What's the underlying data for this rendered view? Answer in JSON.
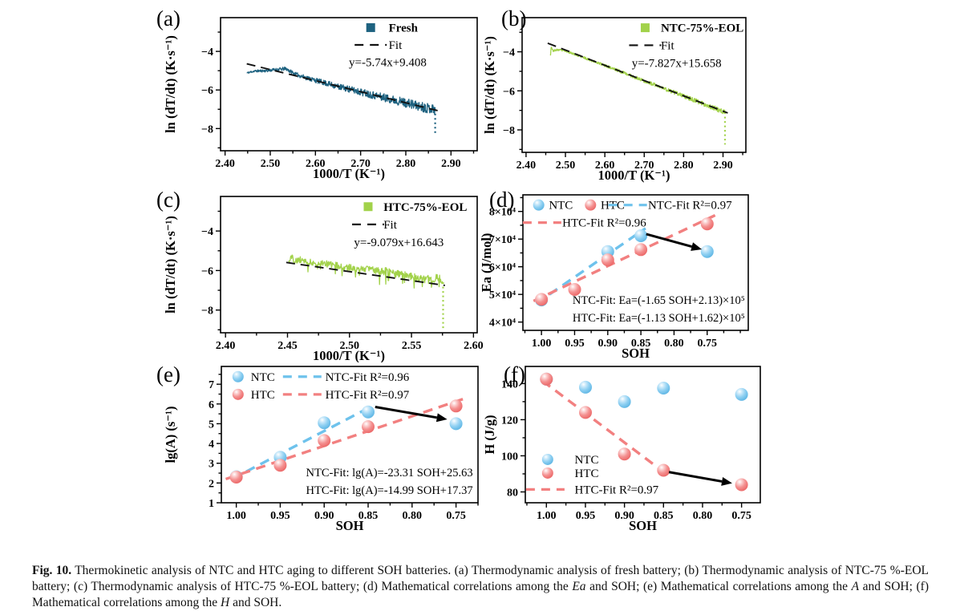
{
  "colors": {
    "teal": "#1e6280",
    "green": "#a2d24a",
    "ntc_blue": "#6ec2ec",
    "htc_red": "#f28080",
    "fit_black": "#111111",
    "arrow_black": "#000000"
  },
  "caption": {
    "fig_label": "Fig. 10.",
    "part1": " Thermokinetic analysis of NTC and HTC aging to different SOH batteries. (a) Thermodynamic analysis of fresh battery; (b) Thermodynamic analysis of NTC-75 %-EOL battery; (c) Thermodynamic analysis of HTC-75 %-EOL battery; (d) Mathematical correlations among the ",
    "italic1": "Ea",
    "part2": " and SOH; (e) Mathematical correlations among the ",
    "italic2": "A",
    "part3": " and SOH; (f) Mathematical correlations among the ",
    "italic3": "H",
    "part4": " and SOH."
  },
  "chart_data": [
    {
      "id": "a",
      "panel_label": "(a)",
      "type": "line",
      "xlabel": "1000/T (K⁻¹)",
      "ylabel": "ln (dT/dt) (K·s⁻¹)",
      "xlim": [
        2.39,
        2.958
      ],
      "ylim": [
        -9.15,
        -2.25
      ],
      "xticks": {
        "values": [
          2.4,
          2.5,
          2.6,
          2.7,
          2.8,
          2.9
        ],
        "labels": [
          "2.40",
          "2.50",
          "2.60",
          "2.70",
          "2.80",
          "2.90"
        ],
        "minor": 0.05
      },
      "yticks": {
        "values": [
          -4,
          -6,
          -8
        ],
        "labels": [
          "−4",
          "−6",
          "−8"
        ],
        "minor": 1
      },
      "fit_equation": "y=-5.74x+9.408",
      "series": [
        {
          "kind": "noisy",
          "name": "Fresh",
          "color_key": "teal",
          "seed": 11,
          "n": 560,
          "amp": [
            0.05,
            0.27
          ],
          "anchors": [
            [
              2.448,
              -5.12
            ],
            [
              2.465,
              -5.02
            ],
            [
              2.49,
              -5.0
            ],
            [
              2.51,
              -4.95
            ],
            [
              2.535,
              -4.9
            ],
            [
              2.555,
              -5.18
            ],
            [
              2.575,
              -5.33
            ],
            [
              2.6,
              -5.5
            ],
            [
              2.65,
              -5.82
            ],
            [
              2.7,
              -6.1
            ],
            [
              2.75,
              -6.38
            ],
            [
              2.8,
              -6.66
            ],
            [
              2.83,
              -6.85
            ],
            [
              2.865,
              -7.0
            ]
          ],
          "tail": {
            "x": 2.865,
            "from": -7.0,
            "to": -8.35
          }
        },
        {
          "kind": "fit",
          "name": "Fit",
          "slope": -5.74,
          "intercept": 9.408,
          "x_range": [
            2.448,
            2.873
          ]
        }
      ],
      "legend": [
        {
          "marker": "square",
          "color_key": "teal",
          "label": "Fresh",
          "bold": true,
          "mfx": 0.585,
          "tfx": 0.655,
          "fy": 0.075
        },
        {
          "marker": "dash",
          "color": "#111111",
          "label": "Fit",
          "mfx": 0.585,
          "tfx": 0.655,
          "fy": 0.205
        },
        {
          "marker": "none",
          "label": "y=-5.74x+9.408",
          "tfx": 0.5,
          "fy": 0.335
        }
      ]
    },
    {
      "id": "b",
      "panel_label": "(b)",
      "type": "line",
      "xlabel": "1000/T (K⁻¹)",
      "ylabel": "ln (dT/dt) (K·s⁻¹)",
      "xlim": [
        2.39,
        2.958
      ],
      "ylim": [
        -9.15,
        -2.25
      ],
      "xticks": {
        "values": [
          2.4,
          2.5,
          2.6,
          2.7,
          2.8,
          2.9
        ],
        "labels": [
          "2.40",
          "2.50",
          "2.60",
          "2.70",
          "2.80",
          "2.90"
        ],
        "minor": 0.05
      },
      "yticks": {
        "values": [
          -4,
          -6,
          -8
        ],
        "labels": [
          "−4",
          "−6",
          "−8"
        ],
        "minor": 1
      },
      "fit_equation": "y=-7.827x+15.658",
      "series": [
        {
          "kind": "noisy",
          "name": "NTC-75%-EOL",
          "color_key": "green",
          "seed": 23,
          "n": 560,
          "amp": [
            0.045,
            0.12
          ],
          "anchors": [
            [
              2.462,
              -4.15
            ],
            [
              2.464,
              -3.72
            ],
            [
              2.468,
              -3.95
            ],
            [
              2.48,
              -3.9
            ],
            [
              2.5,
              -3.95
            ],
            [
              2.52,
              -4.1
            ],
            [
              2.55,
              -4.32
            ],
            [
              2.6,
              -4.7
            ],
            [
              2.65,
              -5.09
            ],
            [
              2.7,
              -5.49
            ],
            [
              2.75,
              -5.88
            ],
            [
              2.8,
              -6.27
            ],
            [
              2.85,
              -6.66
            ],
            [
              2.905,
              -7.1
            ]
          ],
          "tail": {
            "x": 2.905,
            "from": -7.1,
            "to": -8.75
          }
        },
        {
          "kind": "fit",
          "name": "Fit",
          "slope": -7.827,
          "intercept": 15.658,
          "x_range": [
            2.455,
            2.912
          ]
        }
      ],
      "legend": [
        {
          "marker": "square",
          "color_key": "green",
          "label": "NTC-75%-EOL",
          "bold": true,
          "mfx": 0.55,
          "tfx": 0.62,
          "fy": 0.075
        },
        {
          "marker": "dash",
          "color": "#111111",
          "label": "Fit",
          "mfx": 0.55,
          "tfx": 0.62,
          "fy": 0.205
        },
        {
          "marker": "none",
          "label": "y=-7.827x+15.658",
          "tfx": 0.49,
          "fy": 0.335
        }
      ]
    },
    {
      "id": "c",
      "panel_label": "(c)",
      "type": "line",
      "xlabel": "1000/T (K⁻¹)",
      "ylabel": "ln (dT/dt) (K·s⁻¹)",
      "xlim": [
        2.396,
        2.603
      ],
      "ylim": [
        -9.15,
        -2.25
      ],
      "xticks": {
        "values": [
          2.4,
          2.45,
          2.5,
          2.55,
          2.6
        ],
        "labels": [
          "2.40",
          "2.45",
          "2.50",
          "2.55",
          "2.60"
        ],
        "minor": 0.025
      },
      "yticks": {
        "values": [
          -4,
          -6,
          -8
        ],
        "labels": [
          "−4",
          "−6",
          "−8"
        ],
        "minor": 1
      },
      "fit_equation": "y=-9.079x+16.643",
      "series": [
        {
          "kind": "noisy",
          "name": "HTC-75%-EOL",
          "color_key": "green",
          "seed": 37,
          "n": 320,
          "amp": [
            0.15,
            0.22
          ],
          "spike": 0.06,
          "anchors": [
            [
              2.451,
              -5.5
            ],
            [
              2.453,
              -5.28
            ],
            [
              2.456,
              -5.55
            ],
            [
              2.46,
              -5.45
            ],
            [
              2.47,
              -5.6
            ],
            [
              2.48,
              -5.65
            ],
            [
              2.49,
              -5.75
            ],
            [
              2.5,
              -5.85
            ],
            [
              2.51,
              -5.9
            ],
            [
              2.52,
              -6.0
            ],
            [
              2.53,
              -6.05
            ],
            [
              2.54,
              -6.2
            ],
            [
              2.55,
              -6.3
            ],
            [
              2.56,
              -6.4
            ],
            [
              2.567,
              -6.5
            ],
            [
              2.572,
              -6.3
            ],
            [
              2.575,
              -6.55
            ]
          ],
          "tail": {
            "x": 2.5755,
            "from": -6.6,
            "to": -8.95
          }
        },
        {
          "kind": "fit",
          "name": "Fit",
          "slope": -9.079,
          "intercept": 16.643,
          "x_range": [
            2.449,
            2.577
          ]
        }
      ],
      "legend": [
        {
          "marker": "square",
          "color_key": "green",
          "label": "HTC-75%-EOL",
          "bold": true,
          "mfx": 0.575,
          "tfx": 0.635,
          "fy": 0.075
        },
        {
          "marker": "dash",
          "color": "#111111",
          "label": "Fit",
          "mfx": 0.575,
          "tfx": 0.635,
          "fy": 0.205
        },
        {
          "marker": "none",
          "label": "y=-9.079x+16.643",
          "tfx": 0.52,
          "fy": 0.335
        }
      ]
    },
    {
      "id": "d",
      "panel_label": "(d)",
      "type": "scatter",
      "xlabel": "SOH",
      "ylabel": "Ea (J/mol)",
      "xlim": [
        1.028,
        0.688
      ],
      "ylim": [
        37000,
        86000
      ],
      "xticks": {
        "values": [
          1.0,
          0.95,
          0.9,
          0.85,
          0.8,
          0.75
        ],
        "labels": [
          "1.00",
          "0.95",
          "0.90",
          "0.85",
          "0.80",
          "0.75"
        ],
        "minor": 0.025
      },
      "yticks": {
        "values": [
          40000,
          50000,
          60000,
          70000,
          80000
        ],
        "labels": [
          "4×10⁴",
          "5×10⁴",
          "6×10⁴",
          "7×10⁴",
          "8×10⁴"
        ],
        "minor": 5000
      },
      "series": [
        {
          "kind": "dashline",
          "name": "NTC-Fit",
          "color_key": "ntc_blue",
          "r2": "R²=0.97",
          "points": [
            [
              1.008,
              46700
            ],
            [
              0.843,
              73900
            ]
          ]
        },
        {
          "kind": "dashline",
          "name": "HTC-Fit",
          "color_key": "htc_red",
          "r2": "R²=0.96",
          "points": [
            [
              1.012,
              47600
            ],
            [
              0.738,
              78600
            ]
          ]
        },
        {
          "kind": "scatter",
          "name": "NTC",
          "color_key": "ntc_blue",
          "points": [
            [
              1.0,
              48000
            ],
            [
              0.9,
              65500
            ],
            [
              0.85,
              71200
            ],
            [
              0.75,
              65500
            ]
          ]
        },
        {
          "kind": "scatter",
          "name": "HTC",
          "color_key": "htc_red",
          "points": [
            [
              1.0,
              48200
            ],
            [
              0.95,
              51800
            ],
            [
              0.9,
              62500
            ],
            [
              0.85,
              66200
            ],
            [
              0.75,
              75500
            ]
          ]
        }
      ],
      "arrow": {
        "from": [
          0.842,
          71800
        ],
        "to": [
          0.758,
          66300
        ]
      },
      "annotations": [
        {
          "text": "NTC-Fit: Ea=(-1.65 SOH+2.13)×10⁵",
          "fx": 0.985,
          "fy": 0.805,
          "anchor": "end"
        },
        {
          "text": "HTC-Fit: Ea=(-1.13 SOH+1.62)×10⁵",
          "fx": 0.985,
          "fy": 0.935,
          "anchor": "end"
        }
      ],
      "legend": [
        {
          "marker": "ball",
          "color_key": "ntc_blue",
          "label": "NTC",
          "mfx": 0.07,
          "tfx": 0.115,
          "fy": 0.075
        },
        {
          "marker": "ball",
          "color_key": "htc_red",
          "label": "HTC",
          "mfx": 0.3,
          "tfx": 0.345,
          "fy": 0.075
        },
        {
          "marker": "dash",
          "color_key": "ntc_blue",
          "label": "NTC-Fit  R²=0.97",
          "mfx": 0.465,
          "tfx": 0.555,
          "fy": 0.075
        },
        {
          "marker": "dash",
          "color_key": "htc_red",
          "label": "HTC-Fit  R²=0.96",
          "mfx": 0.085,
          "tfx": 0.175,
          "fy": 0.205
        }
      ]
    },
    {
      "id": "e",
      "panel_label": "(e)",
      "type": "scatter",
      "xlabel": "SOH",
      "ylabel": "lg(A) (s⁻¹)",
      "xlim": [
        1.017,
        0.725
      ],
      "ylim": [
        1,
        7.9
      ],
      "xticks": {
        "values": [
          1.0,
          0.95,
          0.9,
          0.85,
          0.8,
          0.75
        ],
        "labels": [
          "1.00",
          "0.95",
          "0.90",
          "0.85",
          "0.80",
          "0.75"
        ],
        "minor": 0.025
      },
      "yticks": {
        "values": [
          1,
          2,
          3,
          4,
          5,
          6,
          7
        ],
        "labels": [
          "1",
          "2",
          "3",
          "4",
          "5",
          "6",
          "7"
        ],
        "minor": 0.5
      },
      "series": [
        {
          "kind": "dashline",
          "name": "NTC-Fit",
          "color_key": "ntc_blue",
          "r2": "R²=0.96",
          "points": [
            [
              1.005,
              2.2
            ],
            [
              0.843,
              5.95
            ]
          ]
        },
        {
          "kind": "dashline",
          "name": "HTC-Fit",
          "color_key": "htc_red",
          "r2": "R²=0.97",
          "points": [
            [
              1.012,
              2.2
            ],
            [
              0.742,
              6.25
            ]
          ]
        },
        {
          "kind": "scatter",
          "name": "NTC",
          "color_key": "ntc_blue",
          "points": [
            [
              1.0,
              2.32
            ],
            [
              0.95,
              3.3
            ],
            [
              0.9,
              5.05
            ],
            [
              0.85,
              5.6
            ],
            [
              0.75,
              5.0
            ]
          ]
        },
        {
          "kind": "scatter",
          "name": "HTC",
          "color_key": "htc_red",
          "points": [
            [
              1.0,
              2.3
            ],
            [
              0.95,
              2.9
            ],
            [
              0.9,
              4.15
            ],
            [
              0.85,
              4.85
            ],
            [
              0.75,
              5.9
            ]
          ]
        }
      ],
      "arrow": {
        "from": [
          0.842,
          5.85
        ],
        "to": [
          0.76,
          5.22
        ]
      },
      "annotations": [
        {
          "text": "NTC-Fit: lg(A)=-23.31 SOH+25.63",
          "fx": 0.98,
          "fy": 0.805,
          "anchor": "end"
        },
        {
          "text": "HTC-Fit: lg(A)=-14.99 SOH+17.37",
          "fx": 0.98,
          "fy": 0.935,
          "anchor": "end"
        }
      ],
      "legend": [
        {
          "marker": "ball",
          "color_key": "ntc_blue",
          "label": "NTC",
          "mfx": 0.065,
          "tfx": 0.115,
          "fy": 0.075
        },
        {
          "marker": "dash",
          "color_key": "ntc_blue",
          "label": "NTC-Fit R²=0.96",
          "mfx": 0.315,
          "tfx": 0.405,
          "fy": 0.075
        },
        {
          "marker": "ball",
          "color_key": "htc_red",
          "label": "HTC",
          "mfx": 0.065,
          "tfx": 0.115,
          "fy": 0.205
        },
        {
          "marker": "dash",
          "color_key": "htc_red",
          "label": "HTC-Fit R²=0.97",
          "mfx": 0.315,
          "tfx": 0.405,
          "fy": 0.205
        }
      ]
    },
    {
      "id": "f",
      "panel_label": "(f)",
      "type": "scatter",
      "xlabel": "SOH",
      "ylabel": "H (J/g)",
      "xlim": [
        1.027,
        0.726
      ],
      "ylim": [
        74,
        149.5
      ],
      "xticks": {
        "values": [
          1.0,
          0.95,
          0.9,
          0.85,
          0.8,
          0.75
        ],
        "labels": [
          "1.00",
          "0.95",
          "0.90",
          "0.85",
          "0.80",
          "0.75"
        ],
        "minor": 0.025
      },
      "yticks": {
        "values": [
          80,
          100,
          120,
          140
        ],
        "labels": [
          "80",
          "100",
          "120",
          "140"
        ],
        "minor": 10
      },
      "series": [
        {
          "kind": "dashline",
          "name": "HTC-Fit",
          "color_key": "htc_red",
          "r2": "R²=0.97",
          "points": [
            [
              1.005,
              141.5
            ],
            [
              0.845,
              89.5
            ]
          ]
        },
        {
          "kind": "scatter",
          "name": "NTC",
          "color_key": "ntc_blue",
          "points": [
            [
              1.0,
              142.5
            ],
            [
              0.95,
              138
            ],
            [
              0.9,
              130
            ],
            [
              0.85,
              137.5
            ],
            [
              0.75,
              134
            ]
          ]
        },
        {
          "kind": "scatter",
          "name": "HTC",
          "color_key": "htc_red",
          "points": [
            [
              1.0,
              142.5
            ],
            [
              0.95,
              124
            ],
            [
              0.9,
              101
            ],
            [
              0.85,
              92
            ],
            [
              0.75,
              84
            ]
          ]
        }
      ],
      "arrow": {
        "from": [
          0.843,
          91
        ],
        "to": [
          0.762,
          84.8
        ]
      },
      "annotations": [],
      "legend": [
        {
          "marker": "ball",
          "color_key": "ntc_blue",
          "label": "NTC",
          "mfx": 0.095,
          "tfx": 0.21,
          "fy": 0.682
        },
        {
          "marker": "ball",
          "color_key": "htc_red",
          "label": "HTC",
          "mfx": 0.095,
          "tfx": 0.21,
          "fy": 0.782
        },
        {
          "marker": "dash",
          "color_key": "htc_red",
          "label": "HTC-Fit  R²=0.97",
          "mfx": 0.085,
          "tfx": 0.21,
          "fy": 0.902
        }
      ]
    }
  ]
}
